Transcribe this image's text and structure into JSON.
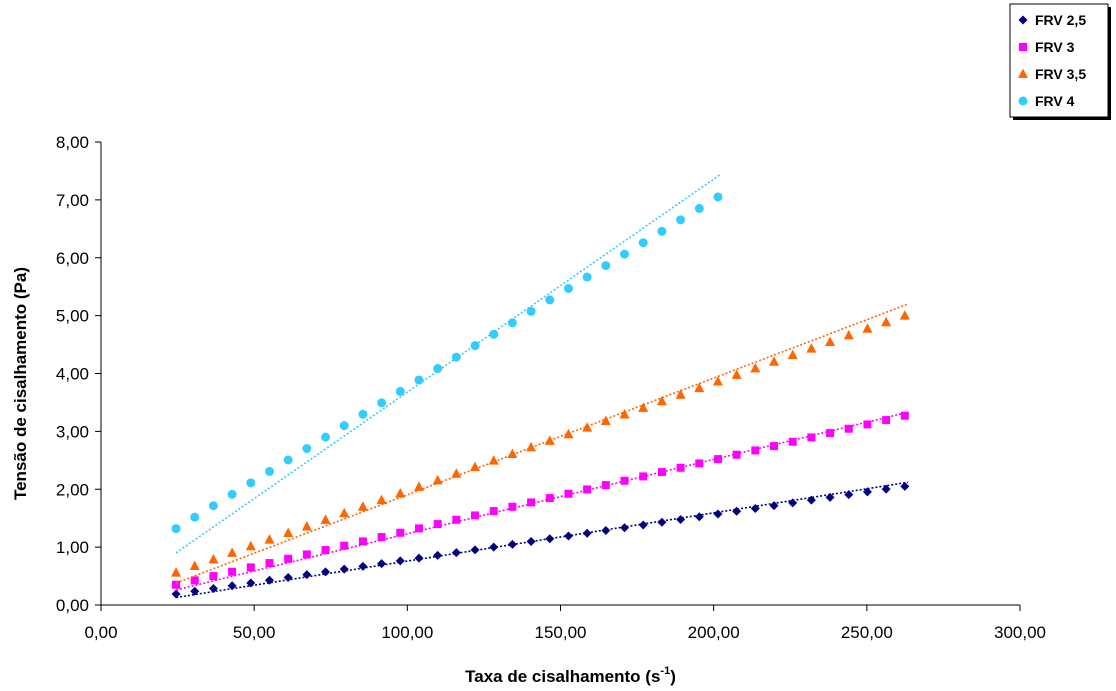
{
  "chart_data": {
    "type": "scatter",
    "title": "",
    "xlabel_main": "Taxa de cisalhamento (s",
    "xlabel_sup": "-1",
    "xlabel_end": ")",
    "ylabel": "Tensão de cisalhamento (Pa)",
    "xlim": [
      0,
      300
    ],
    "ylim": [
      0,
      8
    ],
    "x_ticks": [
      {
        "value": 0,
        "label": "0,00"
      },
      {
        "value": 50,
        "label": "50,00"
      },
      {
        "value": 100,
        "label": "100,00"
      },
      {
        "value": 150,
        "label": "150,00"
      },
      {
        "value": 200,
        "label": "200,00"
      },
      {
        "value": 250,
        "label": "250,00"
      },
      {
        "value": 300,
        "label": "300,00"
      }
    ],
    "y_ticks": [
      {
        "value": 0,
        "label": "0,00"
      },
      {
        "value": 1,
        "label": "1,00"
      },
      {
        "value": 2,
        "label": "2,00"
      },
      {
        "value": 3,
        "label": "3,00"
      },
      {
        "value": 4,
        "label": "4,00"
      },
      {
        "value": 5,
        "label": "5,00"
      },
      {
        "value": 6,
        "label": "6,00"
      },
      {
        "value": 7,
        "label": "7,00"
      },
      {
        "value": 8,
        "label": "8,00"
      }
    ],
    "grid": false,
    "legend_position": "top-right",
    "trendlines": "linear, dotted",
    "series": [
      {
        "name": "FRV 2,5",
        "marker": "diamond",
        "color": "#000080",
        "x_start": 24.5,
        "x_step": 6.1,
        "count": 40,
        "y_start": 0.19,
        "y_end": 2.05,
        "trend": [
          [
            24.5,
            0.13
          ],
          [
            263.4,
            2.12
          ]
        ]
      },
      {
        "name": "FRV 3",
        "marker": "square",
        "color": "#ff00ff",
        "x_start": 24.5,
        "x_step": 6.1,
        "count": 40,
        "y_start": 0.35,
        "y_end": 3.27,
        "trend": [
          [
            24.5,
            0.26
          ],
          [
            263.4,
            3.33
          ]
        ]
      },
      {
        "name": "FRV 3,5",
        "marker": "triangle",
        "color": "#ff6600",
        "x_start": 24.5,
        "x_step": 6.1,
        "count": 40,
        "y_start": 0.56,
        "y_end": 5.0,
        "trend": [
          [
            24.5,
            0.38
          ],
          [
            263.4,
            5.2
          ]
        ]
      },
      {
        "name": "FRV 4",
        "marker": "circle",
        "color": "#33ccff",
        "x_start": 24.5,
        "x_step": 6.1,
        "count": 30,
        "y_start": 1.32,
        "y_end": 7.05,
        "trend": [
          [
            24.5,
            0.9
          ],
          [
            202.5,
            7.45
          ]
        ]
      }
    ]
  }
}
